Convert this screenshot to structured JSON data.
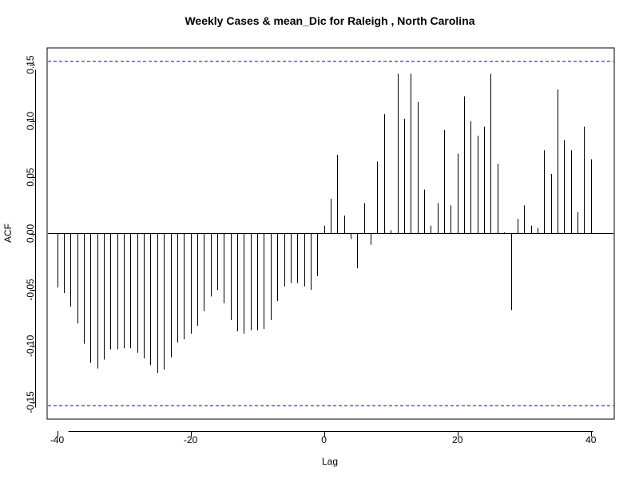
{
  "chart_data": {
    "type": "bar",
    "title": "Weekly Cases & mean_Dic for Raleigh , North Carolina",
    "xlabel": "Lag",
    "ylabel": "ACF",
    "xlim": [
      -41.5,
      43.5
    ],
    "ylim": [
      -0.165,
      0.165
    ],
    "xticks": [
      -40,
      -20,
      0,
      20,
      40
    ],
    "xtick_labels": [
      "-40",
      "-20",
      "0",
      "20",
      "40"
    ],
    "yticks": [
      -0.15,
      -0.1,
      -0.05,
      0.0,
      0.05,
      0.1,
      0.15
    ],
    "ytick_labels": [
      "-0.15",
      "-0.10",
      "-0.05",
      "0.00",
      "0.05",
      "0.10",
      "0.15"
    ],
    "confidence_bound": 0.153,
    "colors": {
      "bars": "#000000",
      "zero_line": "#000000",
      "confidence": "#0000cc"
    },
    "lags": [
      -40,
      -39,
      -38,
      -37,
      -36,
      -35,
      -34,
      -33,
      -32,
      -31,
      -30,
      -29,
      -28,
      -27,
      -26,
      -25,
      -24,
      -23,
      -22,
      -21,
      -20,
      -19,
      -18,
      -17,
      -16,
      -15,
      -14,
      -13,
      -12,
      -11,
      -10,
      -9,
      -8,
      -7,
      -6,
      -5,
      -4,
      -3,
      -2,
      -1,
      0,
      1,
      2,
      3,
      4,
      5,
      6,
      7,
      8,
      9,
      10,
      11,
      12,
      13,
      14,
      15,
      16,
      17,
      18,
      19,
      20,
      21,
      22,
      23,
      24,
      25,
      26,
      27,
      28,
      29,
      30,
      31,
      32,
      33,
      34,
      35,
      36,
      37,
      38,
      39,
      40
    ],
    "values": [
      -0.048,
      -0.053,
      -0.065,
      -0.08,
      -0.098,
      -0.115,
      -0.12,
      -0.112,
      -0.103,
      -0.103,
      -0.102,
      -0.102,
      -0.106,
      -0.111,
      -0.117,
      -0.124,
      -0.121,
      -0.11,
      -0.097,
      -0.094,
      -0.089,
      -0.082,
      -0.069,
      -0.056,
      -0.05,
      -0.062,
      -0.077,
      -0.087,
      -0.089,
      -0.086,
      -0.086,
      -0.085,
      -0.077,
      -0.06,
      -0.047,
      -0.044,
      -0.044,
      -0.047,
      -0.05,
      -0.038,
      0.007,
      0.031,
      0.07,
      0.016,
      -0.005,
      -0.031,
      0.027,
      -0.01,
      0.064,
      0.106,
      0.003,
      0.142,
      0.102,
      0.142,
      0.117,
      0.039,
      0.007,
      0.027,
      0.092,
      0.025,
      0.071,
      0.122,
      0.1,
      0.087,
      0.095,
      0.142,
      0.062,
      0.001,
      -0.068,
      0.013,
      0.025,
      0.007,
      0.005,
      0.074,
      0.053,
      0.128,
      0.083,
      0.074,
      0.019,
      0.095,
      0.066
    ]
  }
}
